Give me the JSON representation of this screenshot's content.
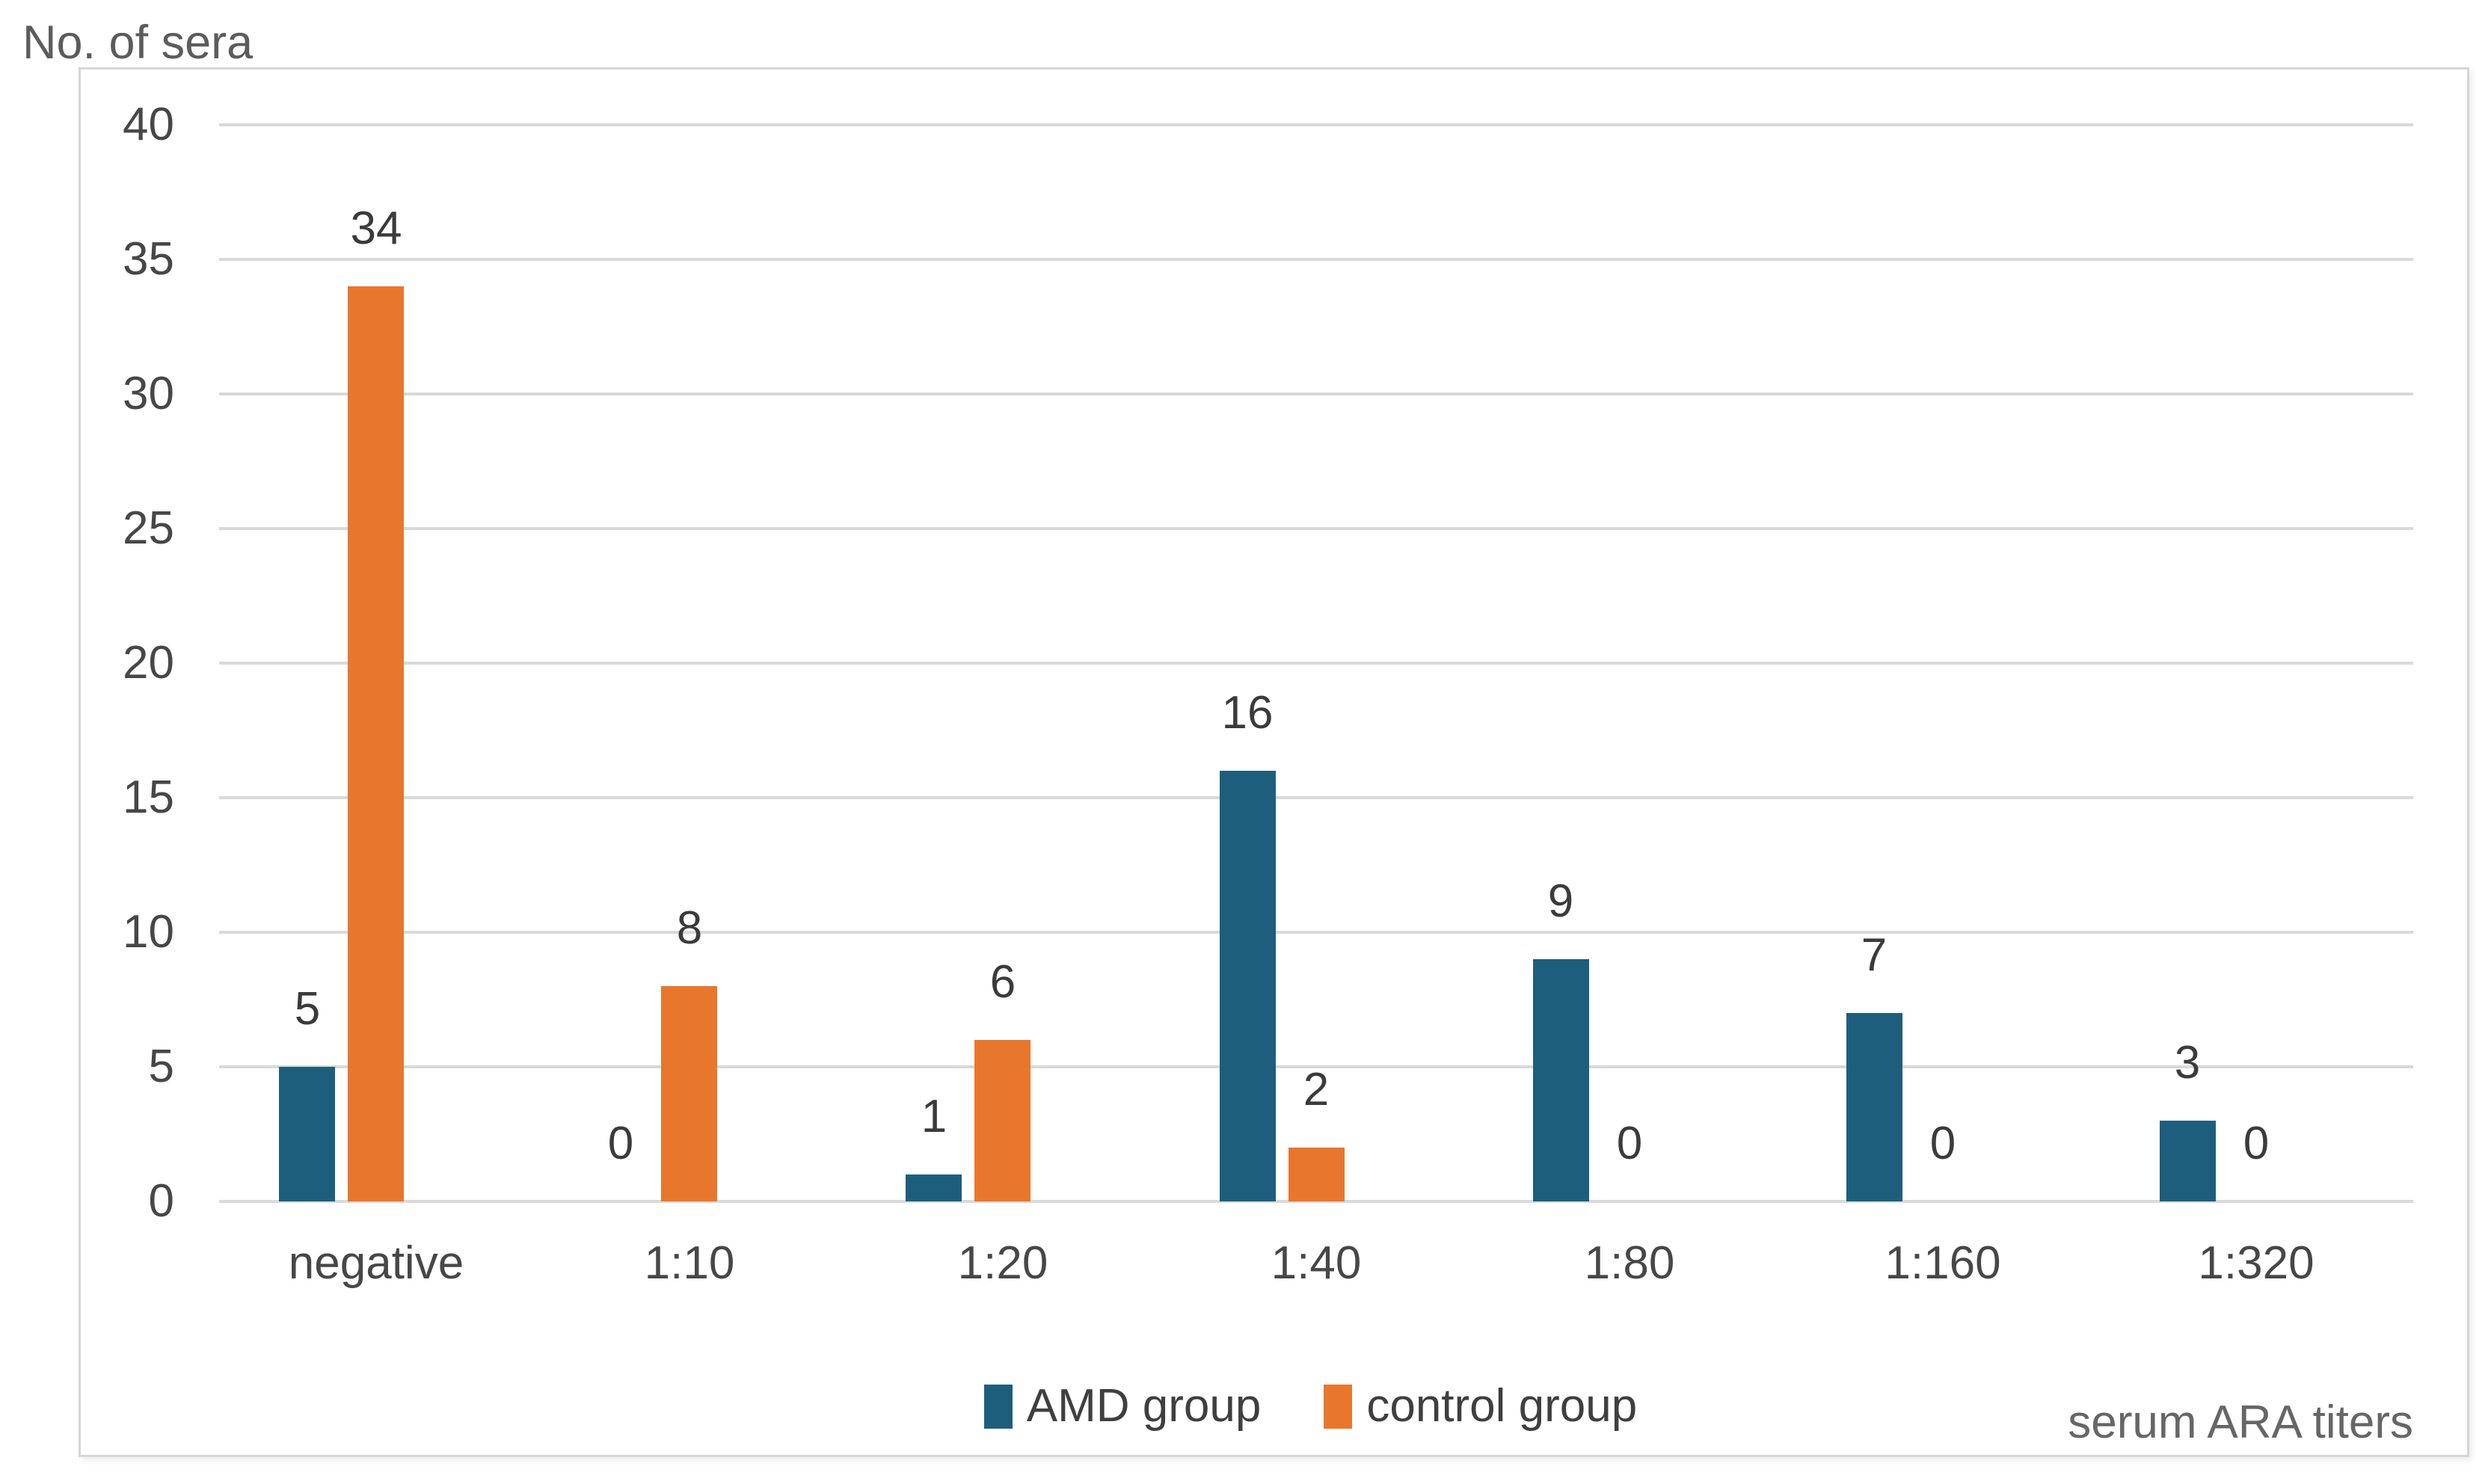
{
  "chart_data": {
    "type": "bar",
    "y_axis_title": "No. of sera",
    "x_axis_title": "serum ARA titers",
    "categories": [
      "negative",
      "1:10",
      "1:20",
      "1:40",
      "1:80",
      "1:160",
      "1:320"
    ],
    "series": [
      {
        "name": "AMD group",
        "color": "#1e5e7d",
        "values": [
          5,
          0,
          1,
          16,
          9,
          7,
          3
        ]
      },
      {
        "name": "control group",
        "color": "#e8772d",
        "values": [
          34,
          8,
          6,
          2,
          0,
          0,
          0
        ]
      }
    ],
    "data_labels_shown": true,
    "y_axis": {
      "min": 0,
      "max": 40,
      "step": 5,
      "tick_labels": [
        "0",
        "5",
        "10",
        "15",
        "20",
        "25",
        "30",
        "35",
        "40"
      ]
    },
    "grid": "horizontal",
    "legend_position": "bottom",
    "legend": [
      "AMD group",
      "control group"
    ]
  },
  "colors": {
    "amd_series": "#1e5e7d",
    "control_series": "#e8772d",
    "gridline": "#d9d9d9",
    "chart_border": "#d6d6d6",
    "tick_text": "#474747",
    "data_label_text": "#3b3b3b",
    "axis_title_text": "#5c5c5c"
  }
}
